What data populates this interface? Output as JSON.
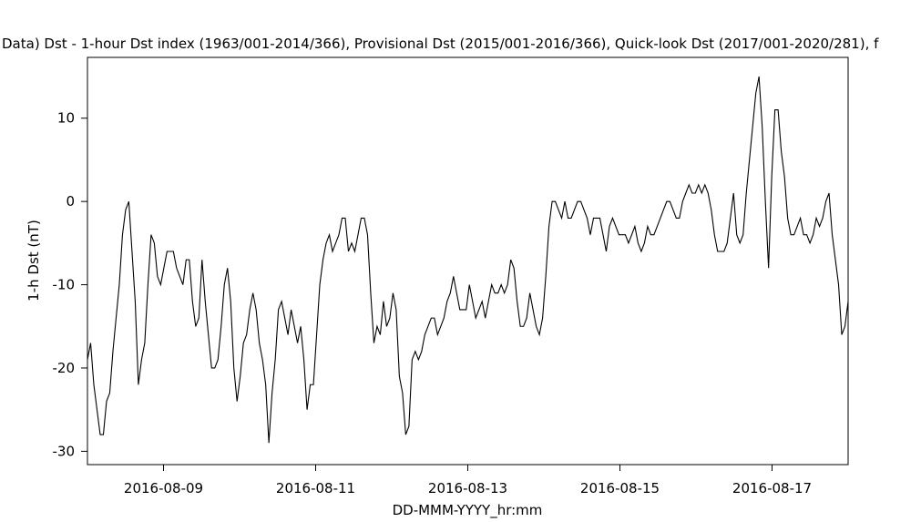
{
  "chart_data": {
    "type": "line",
    "title": "Data)  Dst - 1-hour Dst index (1963/001-2014/366), Provisional Dst (2015/001-2016/366), Quick-look Dst (2017/001-2020/281), f",
    "x_label": "DD-MMM-YYYY_hr:mm",
    "y_label": "1-h Dst (nT)",
    "color": "#000000",
    "xlim": [
      "2016-08-08",
      "2016-08-18"
    ],
    "xticks": [
      "2016-08-09",
      "2016-08-11",
      "2016-08-13",
      "2016-08-15",
      "2016-08-17"
    ],
    "ylim": [
      -31.6,
      17.3
    ],
    "yticks": [
      -30,
      -20,
      -10,
      0,
      10
    ],
    "grid": false,
    "values": [
      -19,
      -17,
      -22,
      -25,
      -28,
      -28,
      -24,
      -23,
      -18,
      -14,
      -10,
      -4,
      -1,
      0,
      -6,
      -12,
      -22,
      -19,
      -17,
      -10,
      -4,
      -5,
      -9,
      -10,
      -8,
      -6,
      -6,
      -6,
      -8,
      -9,
      -10,
      -7,
      -7,
      -12,
      -15,
      -14,
      -7,
      -12,
      -16,
      -20,
      -20,
      -19,
      -15,
      -10,
      -8,
      -12,
      -20,
      -24,
      -21,
      -17,
      -16,
      -13,
      -11,
      -13,
      -17,
      -19,
      -22,
      -29,
      -23,
      -19,
      -13,
      -12,
      -14,
      -16,
      -13,
      -15,
      -17,
      -15,
      -19,
      -25,
      -22,
      -22,
      -16,
      -10,
      -7,
      -5,
      -4,
      -6,
      -5,
      -4,
      -2,
      -2,
      -6,
      -5,
      -6,
      -4,
      -2,
      -2,
      -4,
      -11,
      -17,
      -15,
      -16,
      -12,
      -15,
      -14,
      -11,
      -13,
      -21,
      -23,
      -28,
      -27,
      -19,
      -18,
      -19,
      -18,
      -16,
      -15,
      -14,
      -14,
      -16,
      -15,
      -14,
      -12,
      -11,
      -9,
      -11,
      -13,
      -13,
      -13,
      -10,
      -12,
      -14,
      -13,
      -12,
      -14,
      -12,
      -10,
      -11,
      -11,
      -10,
      -11,
      -10,
      -7,
      -8,
      -12,
      -15,
      -15,
      -14,
      -11,
      -13,
      -15,
      -16,
      -14,
      -9,
      -3,
      0,
      0,
      -1,
      -2,
      0,
      -2,
      -2,
      -1,
      0,
      0,
      -1,
      -2,
      -4,
      -2,
      -2,
      -2,
      -4,
      -6,
      -3,
      -2,
      -3,
      -4,
      -4,
      -4,
      -5,
      -4,
      -3,
      -5,
      -6,
      -5,
      -3,
      -4,
      -4,
      -3,
      -2,
      -1,
      0,
      0,
      -1,
      -2,
      -2,
      0,
      1,
      2,
      1,
      1,
      2,
      1,
      2,
      1,
      -1,
      -4,
      -6,
      -6,
      -6,
      -5,
      -2,
      1,
      -4,
      -5,
      -4,
      1,
      5,
      9,
      13,
      15,
      9,
      0,
      -8,
      3,
      11,
      11,
      6,
      3,
      -2,
      -4,
      -4,
      -3,
      -2,
      -4,
      -4,
      -5,
      -4,
      -2,
      -3,
      -2,
      0,
      1,
      -4,
      -7,
      -10,
      -16,
      -15,
      -12
    ]
  }
}
